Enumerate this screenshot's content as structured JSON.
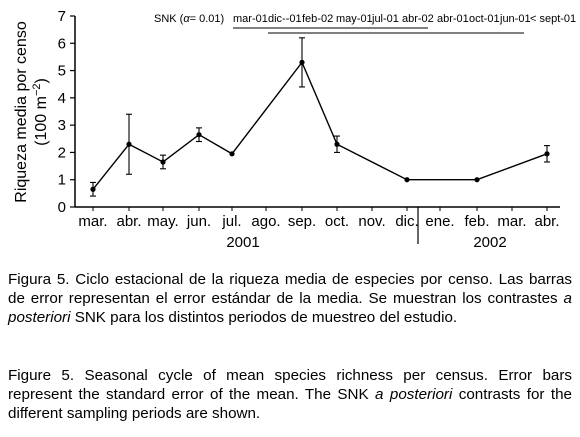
{
  "chart_data": {
    "type": "line",
    "ylabel_line1": "Riqueza media por censo",
    "ylabel_line2_base": "(100 m",
    "ylabel_line2_sup": "−2",
    "ylabel_line2_end": ")",
    "ylim": [
      0,
      7
    ],
    "yticks": [
      "0",
      "1",
      "2",
      "3",
      "4",
      "5",
      "6",
      "7"
    ],
    "x_labels": [
      "mar.",
      "abr.",
      "may.",
      "jun.",
      "jul.",
      "ago.",
      "sep.",
      "oct.",
      "nov.",
      "dic.",
      "ene.",
      "feb.",
      "mar.",
      "abr."
    ],
    "year_labels": [
      "2001",
      "2002"
    ],
    "series": [
      {
        "points": [
          {
            "x": "mar.",
            "y": 0.65,
            "err": 0.25
          },
          {
            "x": "abr.",
            "y": 2.3,
            "err": 1.1
          },
          {
            "x": "may.",
            "y": 1.65,
            "err": 0.25
          },
          {
            "x": "jun.",
            "y": 2.65,
            "err": 0.25
          },
          {
            "x": "jul.",
            "y": 1.95,
            "err": 0
          },
          {
            "x": "sep.",
            "y": 5.3,
            "err": 0.9
          },
          {
            "x": "oct.",
            "y": 2.3,
            "err": 0.3
          },
          {
            "x": "dic.",
            "y": 1.0,
            "err": 0
          },
          {
            "x": "feb.",
            "y": 1.0,
            "err": 0
          },
          {
            "x": "abr.",
            "y": 1.95,
            "err": 0.3
          }
        ]
      }
    ],
    "snk": {
      "label_pre": "SNK (",
      "alpha": "α",
      "label_post": "= 0.01)",
      "periods": [
        "mar-01",
        "dic--01",
        "feb-02",
        "may-01",
        "jul-01",
        "abr-02",
        "abr-01",
        "oct-01",
        "jun-01",
        "< sept-01"
      ]
    }
  },
  "caption_es": {
    "lead": "Figura 5.",
    "part1": " Ciclo estacional de la riqueza media de especies por censo. Las barras de error representan el error estándar de la media. Se muestran los contrastes ",
    "italic": "a posteriori",
    "part2": " SNK para los distintos periodos de muestreo del estudio."
  },
  "caption_en": {
    "lead": "Figure 5.",
    "part1": " Seasonal cycle of mean species richness per census. Error bars represent the standard error of the mean. The SNK ",
    "italic": "a posteriori",
    "part2": " contrasts for the different sampling periods are shown."
  }
}
